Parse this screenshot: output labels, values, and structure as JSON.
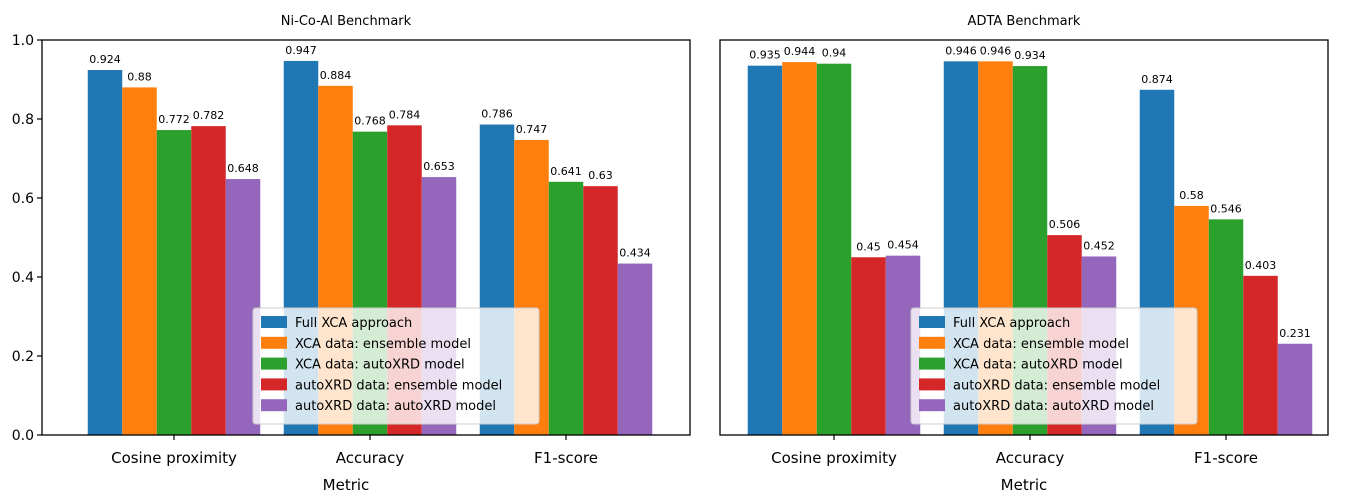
{
  "chart_data": [
    {
      "type": "bar",
      "title": "Ni-Co-Al Benchmark",
      "xlabel": "Metric",
      "ylabel": "",
      "ylim": [
        0,
        1.0
      ],
      "yticks": [
        "0.0",
        "0.2",
        "0.4",
        "0.6",
        "0.8",
        "1.0"
      ],
      "categories": [
        "Cosine proximity",
        "Accuracy",
        "F1-score"
      ],
      "legend_position": "lower-center",
      "series": [
        {
          "name": "Full XCA approach",
          "color": "#1f77b4",
          "values": [
            0.924,
            0.947,
            0.786
          ],
          "labels": [
            "0.924",
            "0.947",
            "0.786"
          ]
        },
        {
          "name": "XCA data: ensemble model",
          "color": "#ff7f0e",
          "values": [
            0.88,
            0.884,
            0.747
          ],
          "labels": [
            "0.88",
            "0.884",
            "0.747"
          ]
        },
        {
          "name": "XCA data: autoXRD model",
          "color": "#2ca02c",
          "values": [
            0.772,
            0.768,
            0.641
          ],
          "labels": [
            "0.772",
            "0.768",
            "0.641"
          ]
        },
        {
          "name": "autoXRD data: ensemble model",
          "color": "#d62728",
          "values": [
            0.782,
            0.784,
            0.63
          ],
          "labels": [
            "0.782",
            "0.784",
            "0.63"
          ]
        },
        {
          "name": "autoXRD data: autoXRD model",
          "color": "#9467bd",
          "values": [
            0.648,
            0.653,
            0.434
          ],
          "labels": [
            "0.648",
            "0.653",
            "0.434"
          ]
        }
      ]
    },
    {
      "type": "bar",
      "title": "ADTA Benchmark",
      "xlabel": "Metric",
      "ylabel": "",
      "ylim": [
        0,
        1.0
      ],
      "yticks": [],
      "categories": [
        "Cosine proximity",
        "Accuracy",
        "F1-score"
      ],
      "legend_position": "lower-center",
      "series": [
        {
          "name": "Full XCA approach",
          "color": "#1f77b4",
          "values": [
            0.935,
            0.946,
            0.874
          ],
          "labels": [
            "0.935",
            "0.946",
            "0.874"
          ]
        },
        {
          "name": "XCA data: ensemble model",
          "color": "#ff7f0e",
          "values": [
            0.944,
            0.946,
            0.58
          ],
          "labels": [
            "0.944",
            "0.946",
            "0.58"
          ]
        },
        {
          "name": "XCA data: autoXRD model",
          "color": "#2ca02c",
          "values": [
            0.94,
            0.934,
            0.546
          ],
          "labels": [
            "0.94",
            "0.934",
            "0.546"
          ]
        },
        {
          "name": "autoXRD data: ensemble model",
          "color": "#d62728",
          "values": [
            0.45,
            0.506,
            0.403
          ],
          "labels": [
            "0.45",
            "0.506",
            "0.403"
          ]
        },
        {
          "name": "autoXRD data: autoXRD model",
          "color": "#9467bd",
          "values": [
            0.454,
            0.452,
            0.231
          ],
          "labels": [
            "0.454",
            "0.452",
            "0.231"
          ]
        }
      ]
    }
  ]
}
